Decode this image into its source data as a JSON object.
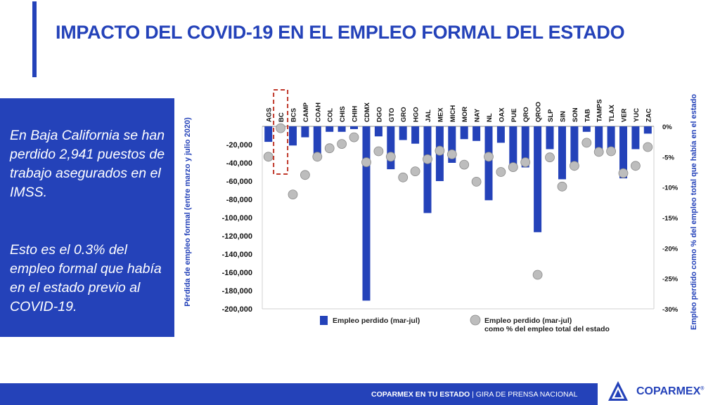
{
  "title": "IMPACTO DEL COVID-19 EN EL EMPLEO FORMAL DEL ESTADO",
  "sidebar": {
    "paragraph1": "En Baja California se han perdido 2,941 puestos de trabajo asegurados en el IMSS.",
    "paragraph2": "Esto es el 0.3% del empleo formal que había en el estado previo al COVID-19."
  },
  "footer": {
    "bold_text": "COPARMEX EN TU ESTADO",
    "separator": " | ",
    "light_text": "GIRA DE PRENSA NACIONAL",
    "logo_text": "COPARMEX"
  },
  "colors": {
    "brand_blue": "#2442b9",
    "highlight_red": "#c0392b",
    "dot_gray": "#bdbdbd"
  },
  "chart_data": {
    "type": "bar",
    "highlight_category": "BC",
    "categories": [
      "AGS",
      "BC",
      "BCS",
      "CAMP",
      "COAH",
      "COL",
      "CHIS",
      "CHIH",
      "CDMX",
      "DGO",
      "GTO",
      "GRO",
      "HGO",
      "JAL",
      "MEX",
      "MICH",
      "MOR",
      "NAY",
      "NL",
      "OAX",
      "PUE",
      "QRO",
      "QROO",
      "SLP",
      "SIN",
      "SON",
      "TAB",
      "TAMPS",
      "TLAX",
      "VER",
      "YUC",
      "ZAC"
    ],
    "series": [
      {
        "name": "Empleo perdido (mar-jul)",
        "axis": "left",
        "values": [
          -17000,
          -2941,
          -21000,
          -12000,
          -30000,
          -6000,
          -6000,
          -3000,
          -191000,
          -11000,
          -47000,
          -15000,
          -19000,
          -95000,
          -60000,
          -40000,
          -14000,
          -16000,
          -81000,
          -18000,
          -47000,
          -45000,
          -116000,
          -25000,
          -58000,
          -43000,
          -6000,
          -25000,
          -30000,
          -57000,
          -25000,
          -8000
        ]
      },
      {
        "name": "Empleo perdido (mar-jul) como % del empleo total del estado",
        "axis": "right",
        "values": [
          -5.0,
          -0.3,
          -11.2,
          -8.0,
          -5.0,
          -3.6,
          -2.9,
          -1.8,
          -5.9,
          -4.1,
          -5.0,
          -8.4,
          -7.4,
          -5.4,
          -4.0,
          -4.6,
          -6.3,
          -9.1,
          -5.0,
          -7.5,
          -6.7,
          -5.9,
          -24.4,
          -5.1,
          -9.9,
          -6.5,
          -2.7,
          -4.2,
          -4.1,
          -7.7,
          -6.5,
          -3.4
        ]
      }
    ],
    "ylabel_left": "Pérdida de empleo formal (entre marzo y julio 2020)",
    "ylabel_right": "Empleo perdido como % del empleo total que había en el estado",
    "ylim_left": [
      -200000,
      0
    ],
    "ylim_right": [
      -30,
      0
    ],
    "yticks_left": [
      -20000,
      -40000,
      -60000,
      -80000,
      -100000,
      -120000,
      -140000,
      -160000,
      -180000,
      -200000
    ],
    "yticks_left_labels": [
      "-20,000",
      "-40,000",
      "-60,000",
      "-80,000",
      "-100,000",
      "-120,000",
      "-140,000",
      "-160,000",
      "-180,000",
      "-200,000"
    ],
    "yticks_right": [
      0,
      -5,
      -10,
      -15,
      -20,
      -25,
      -30
    ],
    "yticks_right_labels": [
      "0%",
      "-5%",
      "-10%",
      "-15%",
      "-20%",
      "-25%",
      "-30%"
    ],
    "legend": {
      "placement": "bottom",
      "bar_label": "Empleo perdido (mar-jul)",
      "dot_label_line1": "Empleo perdido (mar-jul)",
      "dot_label_line2": "como % del empleo total del estado"
    }
  }
}
